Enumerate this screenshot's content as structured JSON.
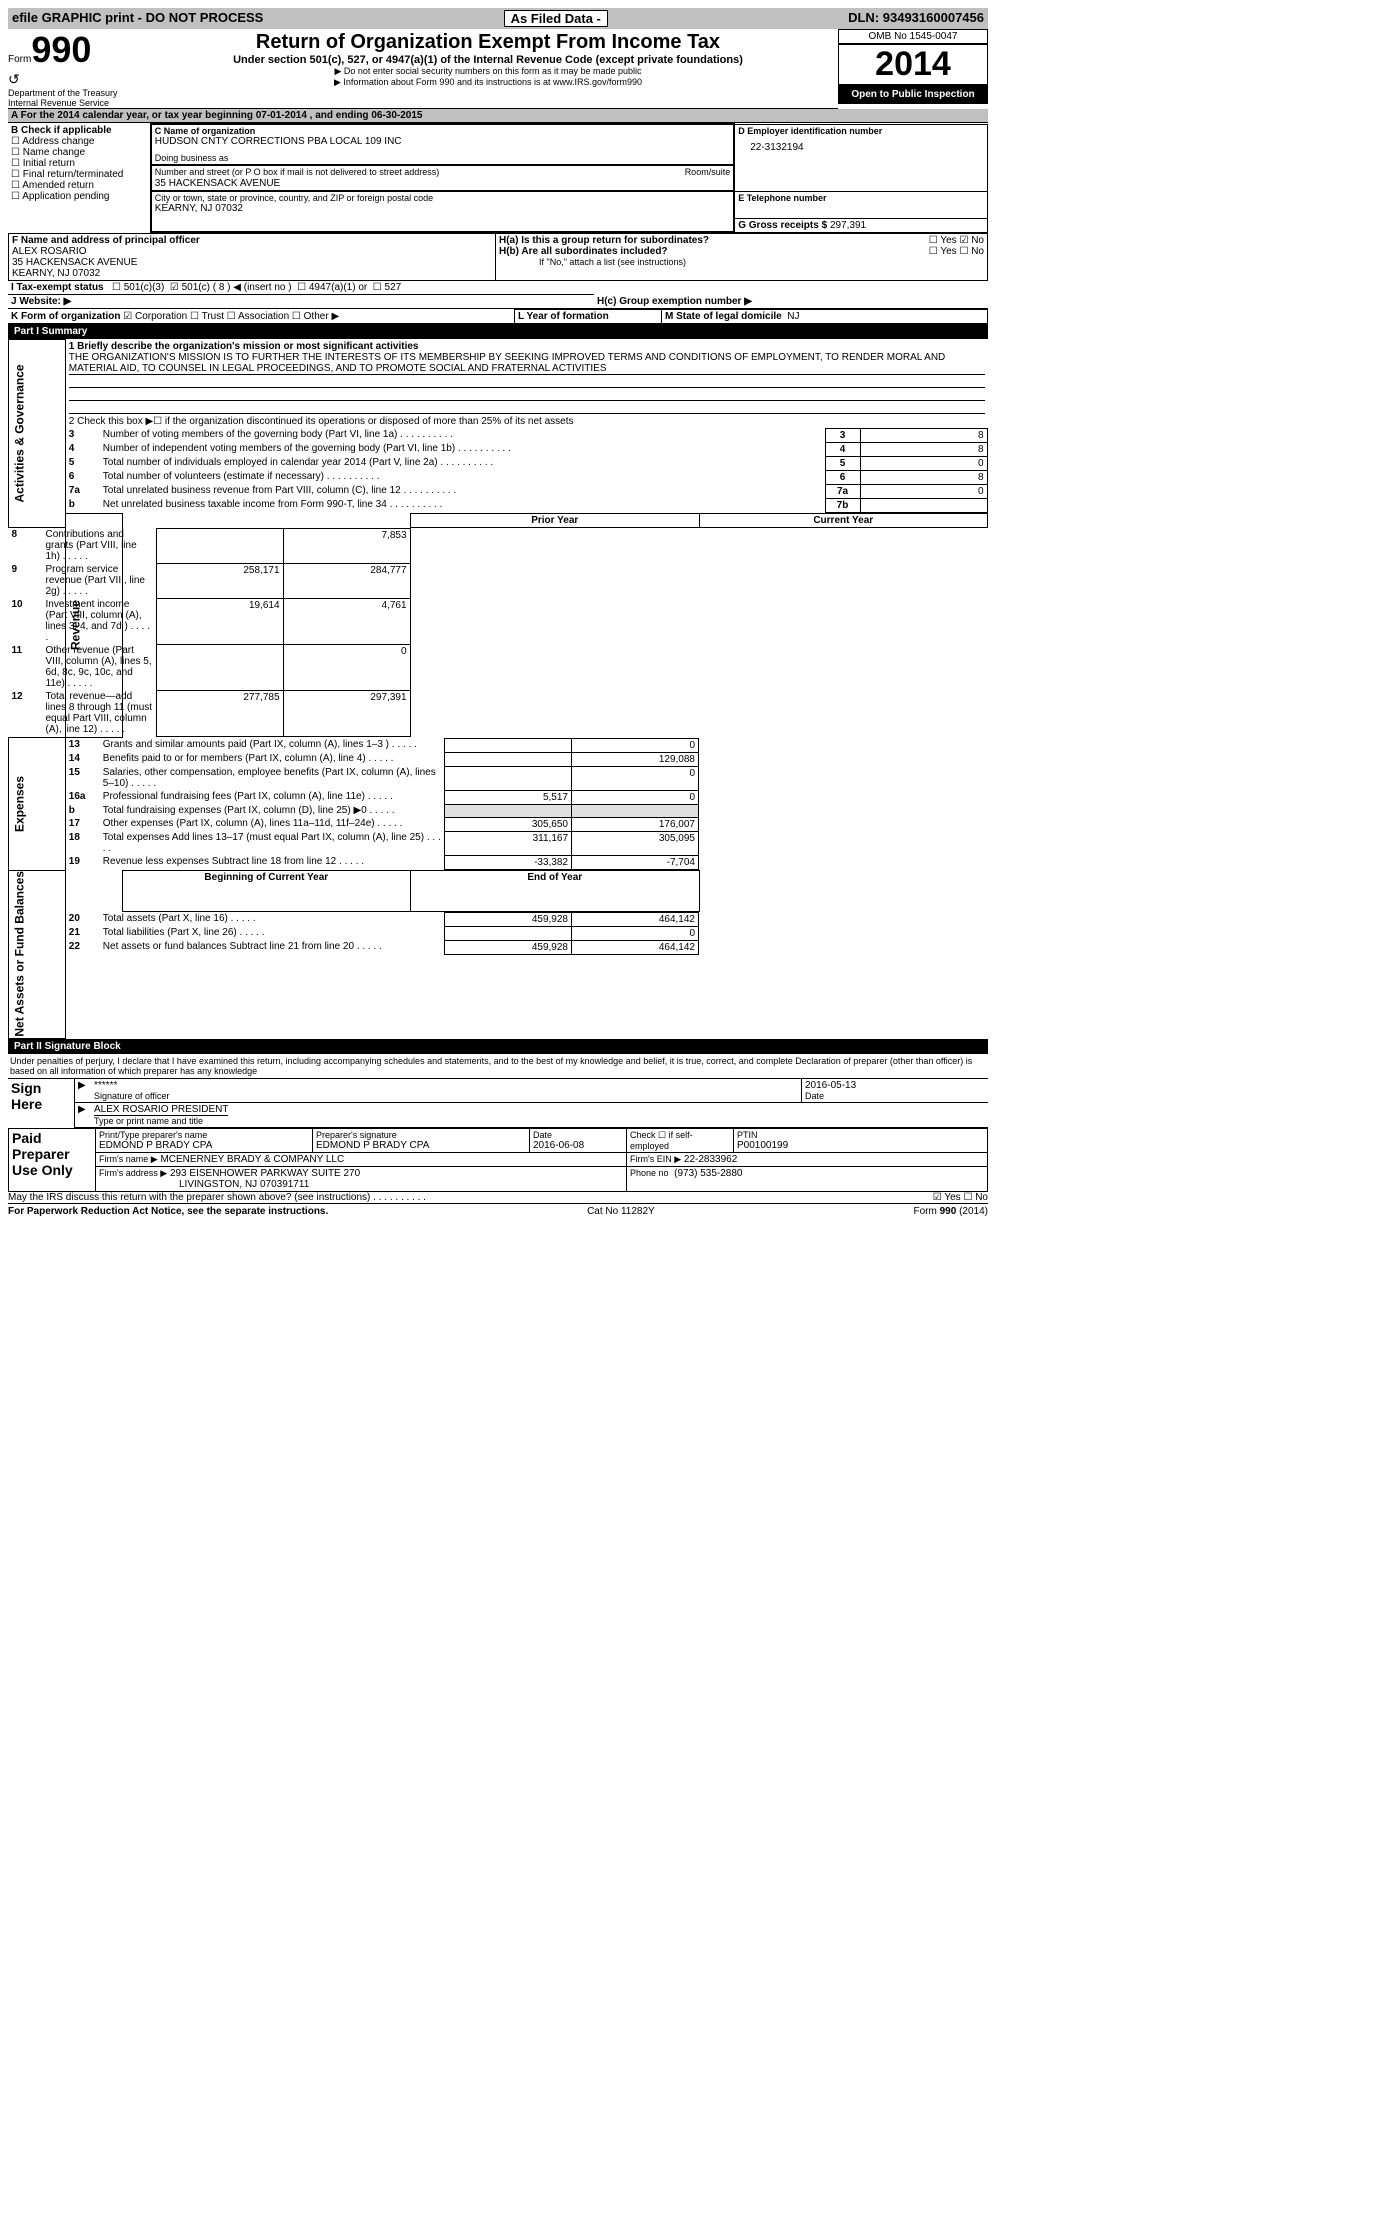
{
  "topbar": {
    "left": "efile GRAPHIC print - DO NOT PROCESS",
    "mid": "As Filed Data -",
    "dln_label": "DLN:",
    "dln": "93493160007456"
  },
  "head": {
    "form_label": "Form",
    "form_no": "990",
    "dept1": "Department of the Treasury",
    "dept2": "Internal Revenue Service",
    "title": "Return of Organization Exempt From Income Tax",
    "sub1": "Under section 501(c), 527, or 4947(a)(1) of the Internal Revenue Code (except private foundations)",
    "sub2": "▶ Do not enter social security numbers on this form as it may be made public",
    "sub3": "▶ Information about Form 990 and its instructions is at www.IRS.gov/form990",
    "omb": "OMB No 1545-0047",
    "year": "2014",
    "open": "Open to Public Inspection"
  },
  "A": {
    "line": "A For the 2014 calendar year, or tax year beginning 07-01-2014    , and ending 06-30-2015"
  },
  "B": {
    "label": "B  Check if applicable",
    "items": [
      "Address change",
      "Name change",
      "Initial return",
      "Final return/terminated",
      "Amended return",
      "Application pending"
    ]
  },
  "C": {
    "name_label": "C Name of organization",
    "name": "HUDSON CNTY CORRECTIONS PBA LOCAL 109 INC",
    "dba_label": "Doing business as",
    "street_label": "Number and street (or P O  box if mail is not delivered to street address)",
    "room_label": "Room/suite",
    "street": "35 HACKENSACK AVENUE",
    "city_label": "City or town, state or province, country, and ZIP or foreign postal code",
    "city": "KEARNY, NJ  07032"
  },
  "D": {
    "label": "D Employer identification number",
    "ein": "22-3132194"
  },
  "E": {
    "label": "E Telephone number"
  },
  "G": {
    "label": "G Gross receipts $",
    "val": "297,391"
  },
  "F": {
    "label": "F   Name and address of principal officer",
    "name": "ALEX ROSARIO",
    "street": "35 HACKENSACK AVENUE",
    "city": "KEARNY, NJ  07032"
  },
  "H": {
    "a": "H(a)  Is this a group return for subordinates?",
    "b": "H(b)  Are all subordinates included?",
    "bnote": "If \"No,\" attach a list  (see instructions)",
    "c": "H(c)   Group exemption number ▶"
  },
  "I": {
    "label": "I   Tax-exempt status",
    "o1": "501(c)(3)",
    "o2": "501(c) ( 8 ) ◀ (insert no )",
    "o3": "4947(a)(1) or",
    "o4": "527"
  },
  "J": {
    "label": "J   Website: ▶"
  },
  "K": {
    "label": "K Form of organization",
    "corp": "Corporation",
    "trust": "Trust",
    "assoc": "Association",
    "other": "Other ▶"
  },
  "L": {
    "label": "L Year of formation"
  },
  "M": {
    "label": "M State of legal domicile",
    "val": "NJ"
  },
  "partI": {
    "title": "Part I     Summary",
    "q1": "1   Briefly describe the organization's mission or most significant activities",
    "mission": "THE ORGANIZATION'S MISSION IS TO FURTHER THE INTERESTS OF ITS MEMBERSHIP BY SEEKING IMPROVED TERMS AND CONDITIONS OF EMPLOYMENT, TO RENDER MORAL AND MATERIAL AID, TO COUNSEL IN LEGAL PROCEEDINGS, AND TO PROMOTE SOCIAL AND FRATERNAL ACTIVITIES",
    "q2": "2   Check this box ▶☐ if the organization discontinued its operations or disposed of more than 25% of its net assets",
    "rows_ag": [
      {
        "n": "3",
        "t": "Number of voting members of the governing body (Part VI, line 1a)",
        "box": "3",
        "v": "8"
      },
      {
        "n": "4",
        "t": "Number of independent voting members of the governing body (Part VI, line 1b)",
        "box": "4",
        "v": "8"
      },
      {
        "n": "5",
        "t": "Total number of individuals employed in calendar year 2014 (Part V, line 2a)",
        "box": "5",
        "v": "0"
      },
      {
        "n": "6",
        "t": "Total number of volunteers (estimate if necessary)",
        "box": "6",
        "v": "8"
      },
      {
        "n": "7a",
        "t": "Total unrelated business revenue from Part VIII, column (C), line 12",
        "box": "7a",
        "v": "0"
      },
      {
        "n": "b",
        "t": "Net unrelated business taxable income from Form 990-T, line 34",
        "box": "7b",
        "v": ""
      }
    ],
    "col_prior": "Prior Year",
    "col_curr": "Current Year",
    "rev": [
      {
        "n": "8",
        "t": "Contributions and grants (Part VIII, line 1h)",
        "p": "",
        "c": "7,853"
      },
      {
        "n": "9",
        "t": "Program service revenue (Part VIII, line 2g)",
        "p": "258,171",
        "c": "284,777"
      },
      {
        "n": "10",
        "t": "Investment income (Part VIII, column (A), lines 3, 4, and 7d )",
        "p": "19,614",
        "c": "4,761"
      },
      {
        "n": "11",
        "t": "Other revenue (Part VIII, column (A), lines 5, 6d, 8c, 9c, 10c, and 11e)",
        "p": "",
        "c": "0"
      },
      {
        "n": "12",
        "t": "Total revenue—add lines 8 through 11 (must equal Part VIII, column (A), line 12)",
        "p": "277,785",
        "c": "297,391"
      }
    ],
    "exp": [
      {
        "n": "13",
        "t": "Grants and similar amounts paid (Part IX, column (A), lines 1–3 )",
        "p": "",
        "c": "0"
      },
      {
        "n": "14",
        "t": "Benefits paid to or for members (Part IX, column (A), line 4)",
        "p": "",
        "c": "129,088"
      },
      {
        "n": "15",
        "t": "Salaries, other compensation, employee benefits (Part IX, column (A), lines 5–10)",
        "p": "",
        "c": "0"
      },
      {
        "n": "16a",
        "t": "Professional fundraising fees (Part IX, column (A), line 11e)",
        "p": "5,517",
        "c": "0"
      },
      {
        "n": "b",
        "t": "Total fundraising expenses (Part IX, column (D), line 25) ▶0",
        "p": "shade",
        "c": "shade"
      },
      {
        "n": "17",
        "t": "Other expenses (Part IX, column (A), lines 11a–11d, 11f–24e)",
        "p": "305,650",
        "c": "176,007"
      },
      {
        "n": "18",
        "t": "Total expenses  Add lines 13–17 (must equal Part IX, column (A), line 25)",
        "p": "311,167",
        "c": "305,095"
      },
      {
        "n": "19",
        "t": "Revenue less expenses  Subtract line 18 from line 12",
        "p": "-33,382",
        "c": "-7,704"
      }
    ],
    "col_boy": "Beginning of Current Year",
    "col_eoy": "End of Year",
    "na": [
      {
        "n": "20",
        "t": "Total assets (Part X, line 16)",
        "p": "459,928",
        "c": "464,142"
      },
      {
        "n": "21",
        "t": "Total liabilities (Part X, line 26)",
        "p": "",
        "c": "0"
      },
      {
        "n": "22",
        "t": "Net assets or fund balances  Subtract line 21 from line 20",
        "p": "459,928",
        "c": "464,142"
      }
    ],
    "side_ag": "Activities & Governance",
    "side_rev": "Revenue",
    "side_exp": "Expenses",
    "side_na": "Net Assets or Fund Balances"
  },
  "partII": {
    "title": "Part II     Signature Block",
    "decl": "Under penalties of perjury, I declare that I have examined this return, including accompanying schedules and statements, and to the best of my knowledge and belief, it is true, correct, and complete  Declaration of preparer (other than officer) is based on all information of which preparer has any knowledge",
    "sign_here": "Sign Here",
    "sig_stars": "******",
    "sig_label": "Signature of officer",
    "sig_date": "2016-05-13",
    "sig_date_label": "Date",
    "officer": "ALEX ROSARIO  PRESIDENT",
    "officer_label": "Type or print name and title",
    "paid": "Paid Preparer Use Only",
    "prep_name_label": "Print/Type preparer's name",
    "prep_name": "EDMOND P BRADY CPA",
    "prep_sig_label": "Preparer's signature",
    "prep_sig": "EDMOND P BRADY CPA",
    "prep_date_label": "Date",
    "prep_date": "2016-06-08",
    "self_label": "Check ☐ if self-employed",
    "ptin_label": "PTIN",
    "ptin": "P00100199",
    "firm_name_label": "Firm's name    ▶",
    "firm_name": "MCENERNEY BRADY & COMPANY LLC",
    "firm_ein_label": "Firm's EIN ▶",
    "firm_ein": "22-2833962",
    "firm_addr_label": "Firm's address ▶",
    "firm_addr1": "293 EISENHOWER PARKWAY SUITE 270",
    "firm_addr2": "LIVINGSTON, NJ  070391711",
    "phone_label": "Phone no",
    "phone": "(973) 535-2880",
    "discuss": "May the IRS discuss this return with the preparer shown above? (see instructions)",
    "yes": "Yes",
    "no": "No"
  },
  "footer": {
    "left": "For Paperwork Reduction Act Notice, see the separate instructions.",
    "mid": "Cat No  11282Y",
    "right": "Form 990 (2014)"
  }
}
